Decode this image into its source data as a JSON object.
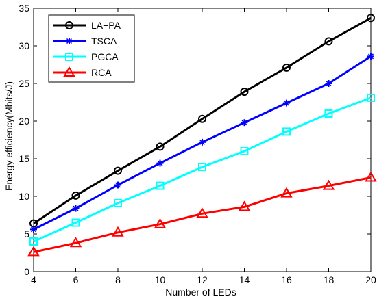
{
  "chart_data": {
    "type": "line",
    "title": "",
    "xlabel": "Number of LEDs",
    "ylabel": "Energy efficiency(Mbits/J)",
    "xlim": [
      4,
      20
    ],
    "ylim": [
      0,
      35
    ],
    "xticks": [
      4,
      6,
      8,
      10,
      12,
      14,
      16,
      18,
      20
    ],
    "yticks": [
      0,
      5,
      10,
      15,
      20,
      25,
      30,
      35
    ],
    "grid": false,
    "legend_position": "top-left",
    "x": [
      4,
      6,
      8,
      10,
      12,
      14,
      16,
      18,
      20
    ],
    "series": [
      {
        "name": "LA−PA",
        "color": "#000000",
        "marker": "circle",
        "values": [
          6.4,
          10.1,
          13.4,
          16.6,
          20.3,
          23.9,
          27.1,
          30.6,
          33.7
        ]
      },
      {
        "name": "TSCA",
        "color": "#0000ff",
        "marker": "star",
        "values": [
          5.6,
          8.4,
          11.5,
          14.4,
          17.2,
          19.8,
          22.4,
          25.0,
          28.6
        ]
      },
      {
        "name": "PGCA",
        "color": "#00ffff",
        "marker": "square",
        "values": [
          4.0,
          6.5,
          9.1,
          11.4,
          13.9,
          16.0,
          18.6,
          21.0,
          23.1
        ]
      },
      {
        "name": "RCA",
        "color": "#ff0000",
        "marker": "triangle",
        "values": [
          2.6,
          3.8,
          5.2,
          6.3,
          7.7,
          8.6,
          10.4,
          11.4,
          12.5
        ]
      }
    ]
  }
}
